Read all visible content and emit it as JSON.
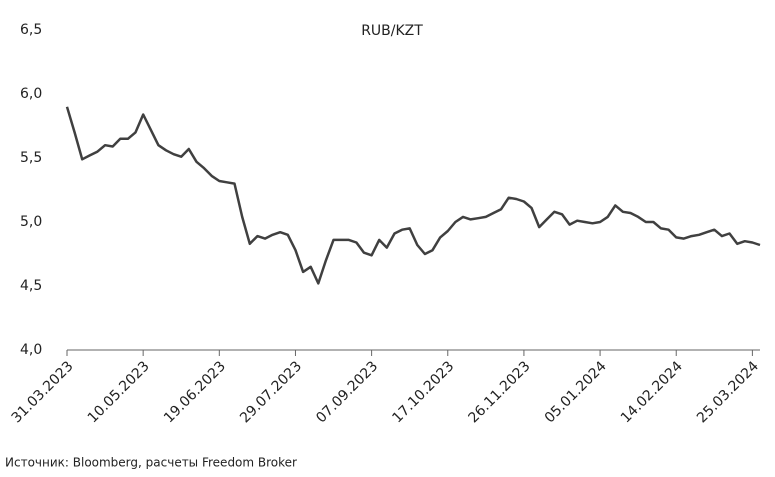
{
  "chart_data": {
    "type": "line",
    "title": "RUB/KZT",
    "source": "Источник: Bloomberg, расчеты Freedom Broker",
    "x": [
      "31.03.2023",
      "04.04.2023",
      "08.04.2023",
      "12.04.2023",
      "16.04.2023",
      "20.04.2023",
      "24.04.2023",
      "28.04.2023",
      "02.05.2023",
      "06.05.2023",
      "10.05.2023",
      "14.05.2023",
      "18.05.2023",
      "22.05.2023",
      "26.05.2023",
      "30.05.2023",
      "03.06.2023",
      "07.06.2023",
      "11.06.2023",
      "15.06.2023",
      "19.06.2023",
      "23.06.2023",
      "27.06.2023",
      "01.07.2023",
      "05.07.2023",
      "09.07.2023",
      "13.07.2023",
      "17.07.2023",
      "21.07.2023",
      "25.07.2023",
      "29.07.2023",
      "02.08.2023",
      "06.08.2023",
      "10.08.2023",
      "14.08.2023",
      "18.08.2023",
      "22.08.2023",
      "26.08.2023",
      "30.08.2023",
      "03.09.2023",
      "07.09.2023",
      "11.09.2023",
      "15.09.2023",
      "19.09.2023",
      "23.09.2023",
      "27.09.2023",
      "01.10.2023",
      "05.10.2023",
      "09.10.2023",
      "13.10.2023",
      "17.10.2023",
      "21.10.2023",
      "25.10.2023",
      "29.10.2023",
      "02.11.2023",
      "06.11.2023",
      "10.11.2023",
      "14.11.2023",
      "18.11.2023",
      "22.11.2023",
      "26.11.2023",
      "30.11.2023",
      "04.12.2023",
      "08.12.2023",
      "12.12.2023",
      "16.12.2023",
      "20.12.2023",
      "24.12.2023",
      "28.12.2023",
      "01.01.2024",
      "05.01.2024",
      "09.01.2024",
      "13.01.2024",
      "17.01.2024",
      "21.01.2024",
      "25.01.2024",
      "29.01.2024",
      "02.02.2024",
      "06.02.2024",
      "10.02.2024",
      "14.02.2024",
      "18.02.2024",
      "22.02.2024",
      "26.02.2024",
      "01.03.2024",
      "05.03.2024",
      "09.03.2024",
      "13.03.2024",
      "17.03.2024",
      "21.03.2024",
      "25.03.2024",
      "29.03.2024"
    ],
    "series": [
      {
        "name": "RUB/KZT",
        "color": "#404040",
        "values": [
          5.9,
          5.7,
          5.49,
          5.52,
          5.55,
          5.6,
          5.59,
          5.65,
          5.65,
          5.7,
          5.84,
          5.72,
          5.6,
          5.56,
          5.53,
          5.51,
          5.57,
          5.47,
          5.42,
          5.36,
          5.32,
          5.31,
          5.3,
          5.04,
          4.83,
          4.89,
          4.87,
          4.9,
          4.92,
          4.9,
          4.78,
          4.61,
          4.65,
          4.52,
          4.7,
          4.86,
          4.86,
          4.86,
          4.84,
          4.76,
          4.74,
          4.86,
          4.8,
          4.91,
          4.94,
          4.95,
          4.82,
          4.75,
          4.78,
          4.88,
          4.93,
          5.0,
          5.04,
          5.02,
          5.03,
          5.04,
          5.07,
          5.1,
          5.19,
          5.18,
          5.16,
          5.11,
          4.96,
          5.02,
          5.08,
          5.06,
          4.98,
          5.01,
          5.0,
          4.99,
          5.0,
          5.04,
          5.13,
          5.08,
          5.07,
          5.04,
          5.0,
          5.0,
          4.95,
          4.94,
          4.88,
          4.87,
          4.89,
          4.9,
          4.92,
          4.94,
          4.89,
          4.91,
          4.83,
          4.85,
          4.84,
          4.82
        ]
      }
    ],
    "xlim": [
      "31.03.2023",
      "29.03.2024"
    ],
    "xticks": [
      "31.03.2023",
      "10.05.2023",
      "19.06.2023",
      "29.07.2023",
      "07.09.2023",
      "17.10.2023",
      "26.11.2023",
      "05.01.2024",
      "14.02.2024",
      "25.03.2024"
    ],
    "ylim": [
      4.0,
      6.5
    ],
    "yticks": [
      {
        "value": 4.0,
        "label": "4,0"
      },
      {
        "value": 4.5,
        "label": "4,5"
      },
      {
        "value": 5.0,
        "label": "5,0"
      },
      {
        "value": 5.5,
        "label": "5,5"
      },
      {
        "value": 6.0,
        "label": "6,0"
      },
      {
        "value": 6.5,
        "label": "6,5"
      }
    ]
  }
}
